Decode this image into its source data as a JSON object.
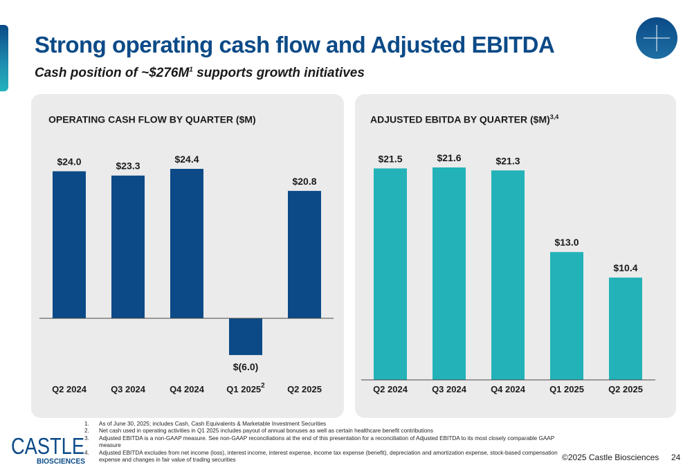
{
  "slide": {
    "title": "Strong operating cash flow and Adjusted EBITDA",
    "subtitle": "Cash position of ~$276M",
    "subtitle_sup": "1",
    "page_number": "24",
    "copyright": "©2025 Castle Biosciences"
  },
  "brand": {
    "name_top": "CASTLE",
    "name_bottom": "BIOSCIENCES",
    "color": "#0b4a87"
  },
  "footnotes": [
    {
      "num": "1.",
      "text": "As of June 30, 2025; includes Cash, Cash Equivalents & Marketable Investment Securities"
    },
    {
      "num": "2.",
      "text": "Net cash used in operating activities in Q1 2025 includes payout of annual bonuses as well as certain healthcare benefit contributions"
    },
    {
      "num": "3.",
      "text": "Adjusted EBITDA is a non-GAAP measure. See non-GAAP reconciliations at the end of this presentation for a reconciliation of Adjusted EBITDA to its most closely comparable GAAP measure"
    },
    {
      "num": "4.",
      "text": "Adjusted EBITDA excludes from net income (loss), interest income, interest expense, income tax expense (benefit), depreciation and amortization expense, stock-based compensation expense and changes in fair value of trading securities"
    }
  ],
  "chart_data": [
    {
      "type": "bar",
      "title": "OPERATING CASH FLOW BY QUARTER ($M)",
      "title_sup": "",
      "categories": [
        "Q2 2024",
        "Q3 2024",
        "Q4 2024",
        "Q1 2025",
        "Q2 2025"
      ],
      "category_sups": [
        "",
        "",
        "",
        "2",
        ""
      ],
      "values": [
        24.0,
        23.3,
        24.4,
        -6.0,
        20.8
      ],
      "data_labels": [
        "$24.0",
        "$23.3",
        "$24.4",
        "$(6.0)",
        "$20.8"
      ],
      "color": "#0b4a87",
      "ylim": [
        -6.0,
        24.4
      ],
      "grid": false,
      "legend": "none"
    },
    {
      "type": "bar",
      "title": "ADJUSTED EBITDA BY QUARTER ($M)",
      "title_sup": "3,4",
      "categories": [
        "Q2 2024",
        "Q3 2024",
        "Q4 2024",
        "Q1 2025",
        "Q2 2025"
      ],
      "category_sups": [
        "",
        "",
        "",
        "",
        ""
      ],
      "values": [
        21.5,
        21.6,
        21.3,
        13.0,
        10.4
      ],
      "data_labels": [
        "$21.5",
        "$21.6",
        "$21.3",
        "$13.0",
        "$10.4"
      ],
      "color": "#22b2b8",
      "ylim": [
        0,
        21.6
      ],
      "grid": false,
      "legend": "none"
    }
  ]
}
